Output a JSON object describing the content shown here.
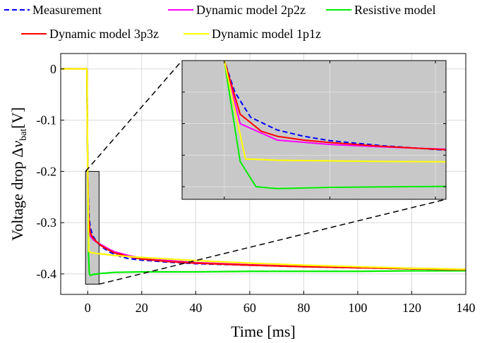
{
  "chart_data": {
    "type": "line",
    "xlabel": "Time [ms]",
    "ylabel_parts": {
      "main": "Voltage drop ",
      "delta": "Δ",
      "v": "v",
      "sub": "bat",
      "unit": "[V]"
    },
    "xlim": [
      -10,
      140
    ],
    "ylim": [
      -0.44,
      0.03
    ],
    "xticks": [
      0,
      20,
      40,
      60,
      80,
      100,
      120,
      140
    ],
    "xtick_labels": [
      "0",
      "20",
      "40",
      "60",
      "80",
      "100",
      "120",
      "140"
    ],
    "yticks": [
      0,
      -0.1,
      -0.2,
      -0.3,
      -0.4
    ],
    "ytick_labels": [
      "0",
      "-0.1",
      "-0.2",
      "-0.3",
      "-0.4"
    ],
    "grid": true,
    "legend_position": "top, outside plot area",
    "series": [
      {
        "name": "Measurement",
        "color": "#0000ff",
        "style": "dashed",
        "x": [
          -10,
          -0.3,
          0,
          0.2,
          0.5,
          1,
          1.5,
          2,
          3,
          4,
          5,
          6,
          8,
          10,
          12,
          15,
          20,
          30,
          40,
          60,
          80,
          100,
          120,
          140
        ],
        "y": [
          0,
          0,
          -0.2,
          -0.25,
          -0.29,
          -0.31,
          -0.32,
          -0.327,
          -0.335,
          -0.341,
          -0.346,
          -0.35,
          -0.357,
          -0.362,
          -0.366,
          -0.37,
          -0.373,
          -0.377,
          -0.38,
          -0.383,
          -0.386,
          -0.388,
          -0.39,
          -0.392
        ]
      },
      {
        "name": "Dynamic model 2p2z",
        "color": "#ff00ff",
        "style": "solid",
        "x": [
          -10,
          -0.3,
          0,
          0.3,
          1,
          2,
          3,
          5,
          8,
          10,
          15,
          20,
          30,
          40,
          60,
          80,
          100,
          120,
          140
        ],
        "y": [
          0,
          0,
          -0.2,
          -0.3,
          -0.326,
          -0.333,
          -0.337,
          -0.343,
          -0.352,
          -0.357,
          -0.364,
          -0.369,
          -0.374,
          -0.378,
          -0.382,
          -0.385,
          -0.387,
          -0.389,
          -0.391
        ]
      },
      {
        "name": "Resistive model",
        "color": "#00ee00",
        "style": "solid",
        "x": [
          -10,
          -0.3,
          0,
          0.3,
          0.6,
          1,
          2,
          5,
          10,
          20,
          40,
          60,
          80,
          100,
          120,
          140
        ],
        "y": [
          0,
          0,
          -0.2,
          -0.36,
          -0.4,
          -0.403,
          -0.401,
          -0.399,
          -0.397,
          -0.396,
          -0.396,
          -0.395,
          -0.395,
          -0.395,
          -0.394,
          -0.394
        ]
      },
      {
        "name": "Dynamic model 3p3z",
        "color": "#ff0000",
        "style": "solid",
        "x": [
          -10,
          -0.3,
          0,
          0.3,
          0.7,
          1,
          1.5,
          2,
          3,
          5,
          8,
          10,
          15,
          20,
          30,
          40,
          60,
          80,
          100,
          120,
          140
        ],
        "y": [
          0,
          0,
          -0.2,
          -0.285,
          -0.312,
          -0.32,
          -0.326,
          -0.33,
          -0.336,
          -0.345,
          -0.354,
          -0.359,
          -0.366,
          -0.371,
          -0.376,
          -0.379,
          -0.383,
          -0.386,
          -0.388,
          -0.39,
          -0.392
        ]
      },
      {
        "name": "Dynamic model 1p1z",
        "color": "#ffff00",
        "style": "solid",
        "x": [
          -10,
          -0.3,
          0,
          0.4,
          1,
          3,
          5,
          10,
          20,
          40,
          60,
          80,
          100,
          120,
          140
        ],
        "y": [
          0,
          0,
          -0.2,
          -0.356,
          -0.358,
          -0.36,
          -0.361,
          -0.364,
          -0.368,
          -0.374,
          -0.379,
          -0.383,
          -0.386,
          -0.389,
          -0.391
        ]
      }
    ],
    "zoom_region": {
      "xlim": [
        -0.8,
        4.2
      ],
      "ylim": [
        -0.42,
        -0.2
      ]
    }
  }
}
